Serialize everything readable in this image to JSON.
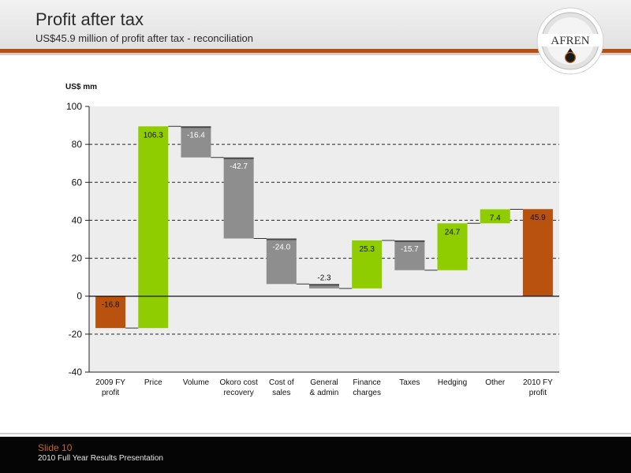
{
  "header": {
    "title": "Profit after tax",
    "subtitle": "US$45.9 million of profit after tax - reconciliation",
    "logo_text": "AFREN"
  },
  "footer": {
    "slide": "Slide 10",
    "presentation": "2010 Full Year Results Presentation"
  },
  "colors": {
    "orange": "#b8520e",
    "green": "#8fcc00",
    "grey": "#8e8e8e",
    "plot_bg": "#ededed",
    "accent_rule": "#b84f0f"
  },
  "chart_data": {
    "type": "waterfall",
    "ylabel": "US$ mm",
    "ylim": [
      -40,
      100
    ],
    "yticks": [
      100,
      80,
      60,
      40,
      20,
      0,
      -20,
      -40
    ],
    "grid": "dashed-horizontal",
    "categories": [
      [
        "2009 FY",
        "profit"
      ],
      [
        "Price"
      ],
      [
        "Volume"
      ],
      [
        "Okoro cost",
        "recovery"
      ],
      [
        "Cost of",
        "sales"
      ],
      [
        "General",
        "& admin"
      ],
      [
        "Finance",
        "charges"
      ],
      [
        "Taxes"
      ],
      [
        "Hedging"
      ],
      [
        "Other"
      ],
      [
        "2010 FY",
        "profit"
      ]
    ],
    "bars": [
      {
        "start": 0,
        "end": -16.8,
        "label": "-16.8",
        "color": "orange"
      },
      {
        "start": -16.8,
        "end": 89.5,
        "label": "106.3",
        "color": "green"
      },
      {
        "start": 89.5,
        "end": 73.1,
        "label": "-16.4",
        "color": "grey"
      },
      {
        "start": 73.1,
        "end": 30.4,
        "label": "-42.7",
        "color": "grey"
      },
      {
        "start": 30.4,
        "end": 6.4,
        "label": "-24.0",
        "color": "grey"
      },
      {
        "start": 6.4,
        "end": 4.1,
        "label": "-2.3",
        "color": "grey"
      },
      {
        "start": 4.1,
        "end": 29.4,
        "label": "25.3",
        "color": "green"
      },
      {
        "start": 29.4,
        "end": 13.7,
        "label": "-15.7",
        "color": "grey"
      },
      {
        "start": 13.7,
        "end": 38.4,
        "label": "24.7",
        "color": "green"
      },
      {
        "start": 38.4,
        "end": 45.8,
        "label": "7.4",
        "color": "green"
      },
      {
        "start": 0,
        "end": 45.9,
        "label": "45.9",
        "color": "orange"
      }
    ]
  }
}
